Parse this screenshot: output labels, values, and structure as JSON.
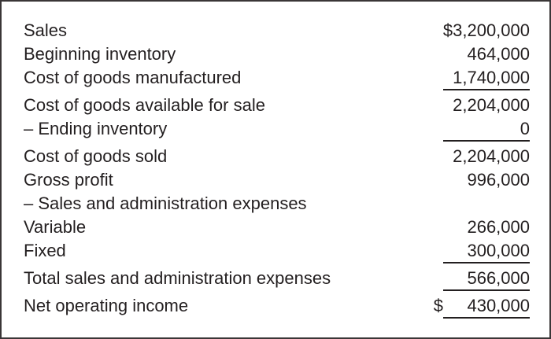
{
  "colors": {
    "text": "#231f20",
    "rule_line": "#231f20",
    "panel_border": "#3a3637",
    "background": "#ffffff"
  },
  "table": {
    "description": "Income statement figures, amounts right-aligned, single rule under subtotals",
    "rows": [
      {
        "label": "Sales",
        "currency": "$",
        "value": "3,200,000",
        "underline": false
      },
      {
        "label": "Beginning inventory",
        "value": "464,000",
        "underline": false
      },
      {
        "label": "Cost of goods manufactured",
        "value": "1,740,000",
        "underline": true
      },
      {
        "label": "Cost of goods available for sale",
        "value": "2,204,000",
        "underline": false
      },
      {
        "label": "– Ending inventory",
        "value": "0",
        "underline": true
      },
      {
        "label": "Cost of goods sold",
        "value": "2,204,000",
        "underline": false
      },
      {
        "label": "Gross profit",
        "value": "996,000",
        "underline": false
      },
      {
        "label": "– Sales and administration expenses",
        "value": "",
        "underline": false
      },
      {
        "label": "Variable",
        "value": "266,000",
        "underline": false
      },
      {
        "label": "Fixed",
        "value": "300,000",
        "underline": true
      },
      {
        "label": "Total sales and administration expenses",
        "value": "566,000",
        "underline": true
      },
      {
        "label": "Net operating income",
        "currency": "$",
        "value": "430,000",
        "underline": true
      }
    ]
  }
}
